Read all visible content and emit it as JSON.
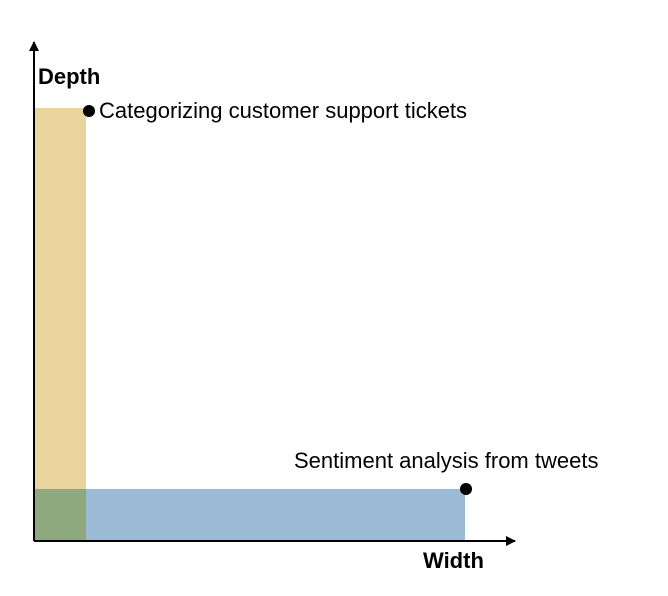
{
  "axes": {
    "y_label": "Depth",
    "x_label": "Width"
  },
  "regions": {
    "depth_bar_color": "#ead49e",
    "width_bar_color": "#9bbad5",
    "overlap_color": "#8fa97e"
  },
  "points": [
    {
      "label": "Categorizing customer support tickets"
    },
    {
      "label": "Sentiment analysis from tweets"
    }
  ]
}
